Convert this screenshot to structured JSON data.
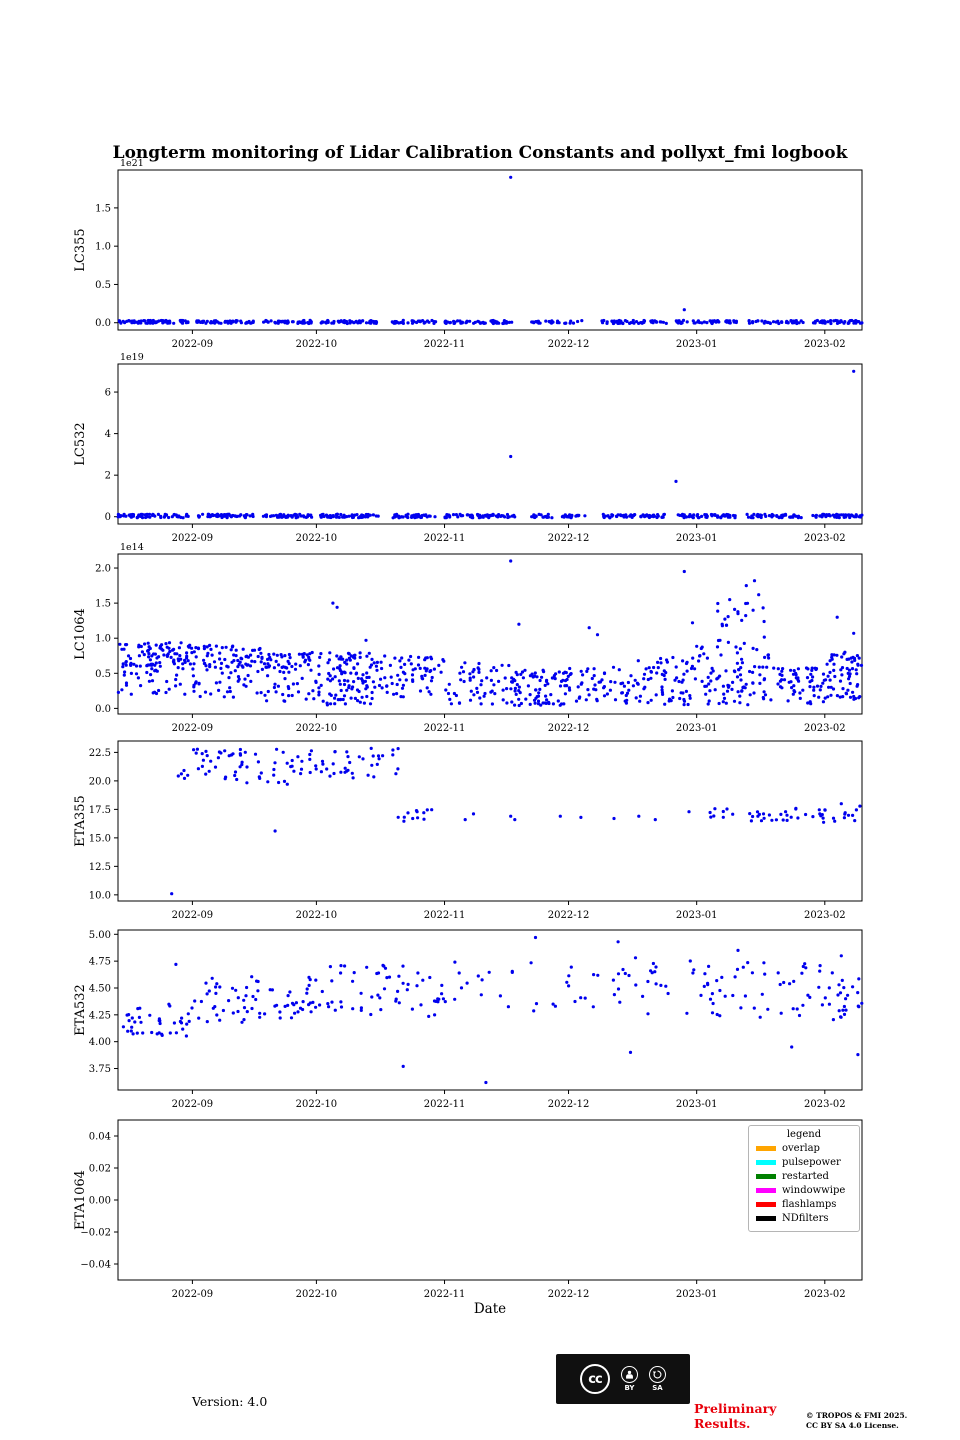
{
  "chart_data": {
    "type": "scatter",
    "title": "Longterm monitoring of Lidar Calibration Constants and pollyxt_fmi logbook",
    "xlabel": "Date",
    "point_color": "#0000ee",
    "x_domain": {
      "start": "2022-08-14",
      "end": "2023-02-10",
      "days": 180
    },
    "x_ticks": [
      {
        "label": "2022-09",
        "day": 18
      },
      {
        "label": "2022-10",
        "day": 48
      },
      {
        "label": "2022-11",
        "day": 79
      },
      {
        "label": "2022-12",
        "day": 109
      },
      {
        "label": "2023-01",
        "day": 140
      },
      {
        "label": "2023-02",
        "day": 171
      }
    ],
    "subplots": [
      {
        "name": "LC355",
        "ylabel": "LC355",
        "offset_label": "1e21",
        "ylim": [
          -0.095,
          1.995
        ],
        "yticks": [
          0.0,
          0.5,
          1.0,
          1.5
        ],
        "ytick_labels": [
          "0.0",
          "0.5",
          "1.0",
          "1.5"
        ],
        "clusters": [
          [
            0,
            17,
            -0.01,
            0.03,
            60
          ],
          [
            19,
            33,
            -0.01,
            0.03,
            52
          ],
          [
            35,
            47,
            -0.01,
            0.03,
            46
          ],
          [
            49,
            63,
            -0.01,
            0.03,
            50
          ],
          [
            66,
            77,
            -0.01,
            0.03,
            36
          ],
          [
            79,
            96,
            -0.01,
            0.03,
            56
          ],
          [
            100,
            113,
            -0.01,
            0.03,
            28
          ],
          [
            117,
            133,
            -0.01,
            0.03,
            52
          ],
          [
            135,
            150,
            -0.01,
            0.03,
            46
          ],
          [
            152,
            166,
            -0.01,
            0.03,
            40
          ],
          [
            168,
            180,
            -0.01,
            0.03,
            46
          ]
        ],
        "points": [
          [
            95,
            1.9
          ],
          [
            137,
            0.17
          ]
        ]
      },
      {
        "name": "LC532",
        "ylabel": "LC532",
        "offset_label": "1e19",
        "ylim": [
          -0.35,
          7.35
        ],
        "yticks": [
          0,
          2,
          4,
          6
        ],
        "ytick_labels": [
          "0",
          "2",
          "4",
          "6"
        ],
        "clusters": [
          [
            0,
            17,
            -0.05,
            0.12,
            65
          ],
          [
            19,
            33,
            -0.05,
            0.12,
            55
          ],
          [
            35,
            47,
            -0.05,
            0.12,
            50
          ],
          [
            49,
            63,
            -0.05,
            0.12,
            55
          ],
          [
            66,
            77,
            -0.05,
            0.12,
            40
          ],
          [
            79,
            96,
            -0.05,
            0.12,
            60
          ],
          [
            100,
            113,
            -0.05,
            0.12,
            35
          ],
          [
            117,
            133,
            -0.05,
            0.12,
            55
          ],
          [
            135,
            150,
            -0.05,
            0.12,
            50
          ],
          [
            152,
            166,
            -0.05,
            0.12,
            45
          ],
          [
            168,
            180,
            -0.05,
            0.12,
            50
          ]
        ],
        "points": [
          [
            95,
            2.9
          ],
          [
            135,
            1.7
          ],
          [
            178,
            7.0
          ]
        ]
      },
      {
        "name": "LC1064",
        "ylabel": "LC1064",
        "offset_label": "1e14",
        "ylim": [
          -0.08,
          2.2
        ],
        "yticks": [
          0.0,
          0.5,
          1.0,
          1.5,
          2.0
        ],
        "ytick_labels": [
          "0.0",
          "0.5",
          "1.0",
          "1.5",
          "2.0"
        ],
        "clusters": [
          [
            0,
            18,
            0.6,
            0.95,
            90
          ],
          [
            0,
            18,
            0.2,
            0.6,
            35
          ],
          [
            18,
            35,
            0.55,
            0.9,
            70
          ],
          [
            18,
            35,
            0.15,
            0.55,
            35
          ],
          [
            35,
            48,
            0.55,
            0.8,
            45
          ],
          [
            35,
            48,
            0.1,
            0.55,
            30
          ],
          [
            48,
            62,
            0.3,
            0.8,
            75
          ],
          [
            48,
            62,
            0.05,
            0.3,
            35
          ],
          [
            62,
            79,
            0.15,
            0.75,
            70
          ],
          [
            79,
            95,
            0.05,
            0.65,
            55
          ],
          [
            95,
            109,
            0.03,
            0.55,
            85
          ],
          [
            109,
            125,
            0.05,
            0.6,
            55
          ],
          [
            125,
            140,
            0.05,
            0.75,
            70
          ],
          [
            140,
            158,
            0.05,
            0.9,
            90
          ],
          [
            145,
            157,
            0.9,
            1.5,
            22
          ],
          [
            158,
            171,
            0.05,
            0.6,
            60
          ],
          [
            171,
            180,
            0.1,
            0.8,
            65
          ]
        ],
        "points": [
          [
            52,
            1.5
          ],
          [
            53,
            1.44
          ],
          [
            60,
            0.97
          ],
          [
            95,
            2.1
          ],
          [
            97,
            1.2
          ],
          [
            114,
            1.15
          ],
          [
            116,
            1.05
          ],
          [
            137,
            1.95
          ],
          [
            139,
            1.22
          ],
          [
            148,
            1.55
          ],
          [
            150,
            1.35
          ],
          [
            152,
            1.75
          ],
          [
            154,
            1.82
          ],
          [
            155,
            1.62
          ],
          [
            174,
            1.3
          ],
          [
            178,
            1.07
          ]
        ]
      },
      {
        "name": "ETA355",
        "ylabel": "ETA355",
        "offset_label": null,
        "ylim": [
          9.46,
          23.5
        ],
        "yticks": [
          10.0,
          12.5,
          15.0,
          17.5,
          20.0,
          22.5
        ],
        "ytick_labels": [
          "10.0",
          "12.5",
          "15.0",
          "17.5",
          "20.0",
          "22.5"
        ],
        "clusters": [
          [
            14,
            68,
            20.2,
            22.9,
            95
          ],
          [
            16,
            66,
            19.7,
            20.3,
            8
          ],
          [
            67,
            77,
            16.4,
            17.6,
            12
          ],
          [
            138,
            171,
            16.3,
            17.6,
            38
          ],
          [
            171,
            180,
            16.3,
            17.8,
            12
          ]
        ],
        "points": [
          [
            13,
            10.1
          ],
          [
            38,
            15.6
          ],
          [
            84,
            16.6
          ],
          [
            86,
            17.1
          ],
          [
            95,
            16.9
          ],
          [
            96,
            16.6
          ],
          [
            107,
            16.9
          ],
          [
            112,
            16.8
          ],
          [
            120,
            16.7
          ],
          [
            126,
            16.9
          ],
          [
            130,
            16.6
          ],
          [
            175,
            18.0
          ]
        ]
      },
      {
        "name": "ETA532",
        "ylabel": "ETA532",
        "offset_label": null,
        "ylim": [
          3.55,
          5.04
        ],
        "yticks": [
          3.75,
          4.0,
          4.25,
          4.5,
          4.75,
          5.0
        ],
        "ytick_labels": [
          "3.75",
          "4.00",
          "4.25",
          "4.50",
          "4.75",
          "5.00"
        ],
        "clusters": [
          [
            0,
            18,
            4.05,
            4.35,
            40
          ],
          [
            18,
            48,
            4.18,
            4.62,
            70
          ],
          [
            48,
            79,
            4.22,
            4.72,
            58
          ],
          [
            79,
            109,
            4.2,
            4.75,
            20
          ],
          [
            109,
            140,
            4.25,
            4.8,
            35
          ],
          [
            140,
            171,
            4.2,
            4.75,
            50
          ],
          [
            171,
            180,
            4.2,
            4.65,
            25
          ]
        ],
        "points": [
          [
            14,
            4.72
          ],
          [
            69,
            3.77
          ],
          [
            89,
            3.62
          ],
          [
            101,
            4.97
          ],
          [
            121,
            4.93
          ],
          [
            124,
            3.9
          ],
          [
            150,
            4.85
          ],
          [
            163,
            3.95
          ],
          [
            175,
            4.8
          ],
          [
            179,
            3.88
          ]
        ]
      },
      {
        "name": "ETA1064",
        "ylabel": "ETA1064",
        "offset_label": null,
        "ylim": [
          -0.05,
          0.05
        ],
        "yticks": [
          -0.04,
          -0.02,
          0,
          0.02,
          0.04
        ],
        "ytick_labels": [
          "−0.04",
          "−0.02",
          "0.00",
          "0.02",
          "0.04"
        ],
        "clusters": [],
        "points": []
      }
    ],
    "legend": {
      "title": "legend",
      "entries": [
        {
          "label": "overlap",
          "color": "#ffa500"
        },
        {
          "label": "pulsepower",
          "color": "#00ffff"
        },
        {
          "label": "restarted",
          "color": "#008000"
        },
        {
          "label": "windowwipe",
          "color": "#ff00ff"
        },
        {
          "label": "flashlamps",
          "color": "#ff0000"
        },
        {
          "label": "NDfilters",
          "color": "#000000"
        }
      ]
    }
  },
  "footer": {
    "version": "Version: 4.0",
    "preliminary_line1": "Preliminary",
    "preliminary_line2": "Results.",
    "copyright_line1": "© TROPOS & FMI 2025.",
    "copyright_line2": "CC BY SA 4.0 License.",
    "badge": {
      "cc": "cc",
      "by": "BY",
      "sa": "SA"
    }
  }
}
